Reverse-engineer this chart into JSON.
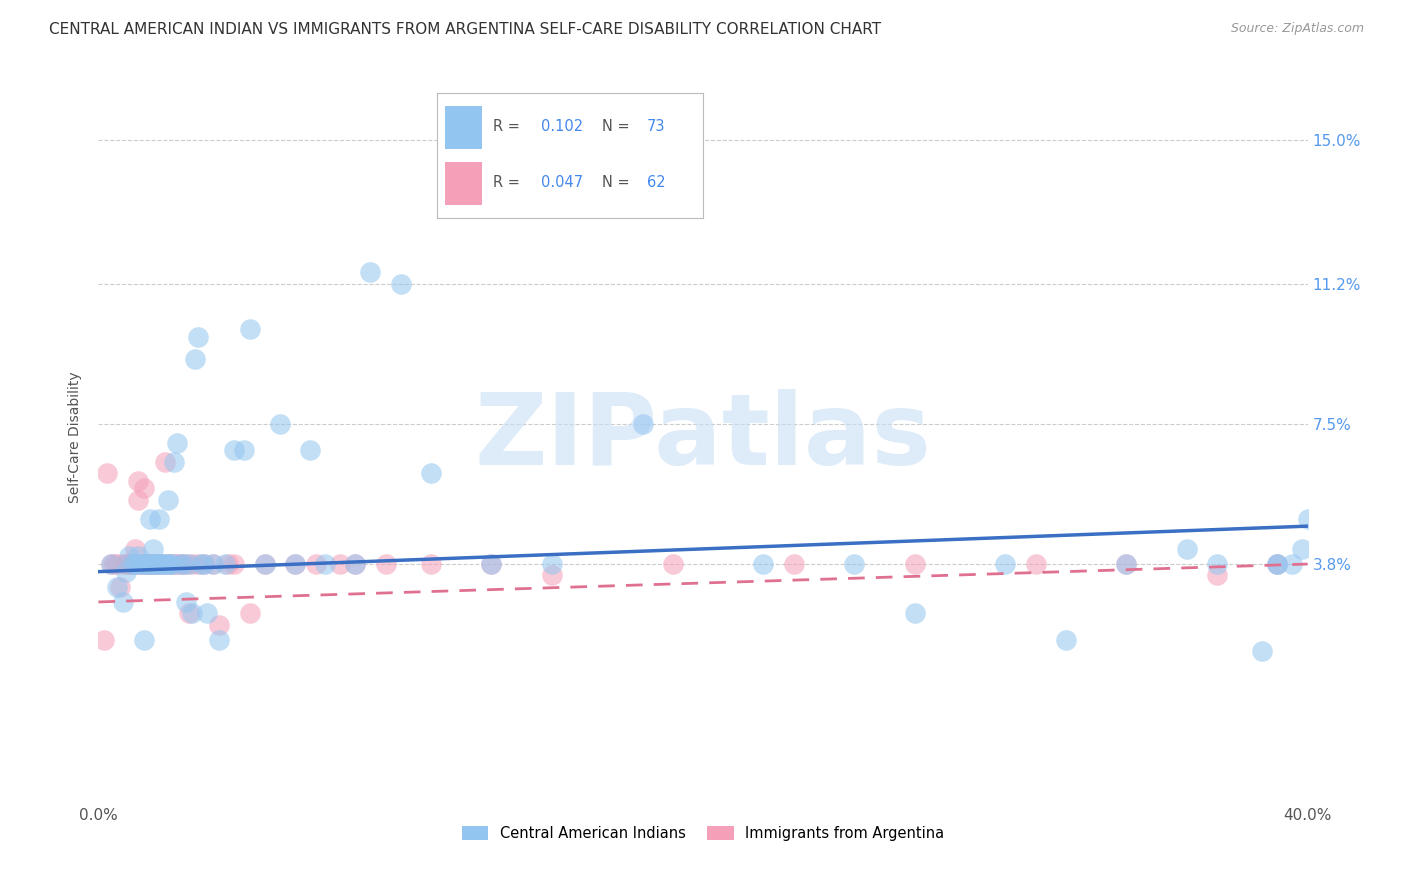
{
  "title": "CENTRAL AMERICAN INDIAN VS IMMIGRANTS FROM ARGENTINA SELF-CARE DISABILITY CORRELATION CHART",
  "source": "Source: ZipAtlas.com",
  "ylabel": "Self-Care Disability",
  "ytick_labels": [
    "15.0%",
    "11.2%",
    "7.5%",
    "3.8%"
  ],
  "ytick_values": [
    0.15,
    0.112,
    0.075,
    0.038
  ],
  "xlim": [
    0.0,
    0.4
  ],
  "ylim": [
    -0.025,
    0.168
  ],
  "legend1_r": "0.102",
  "legend1_n": "73",
  "legend2_r": "0.047",
  "legend2_n": "62",
  "color_blue": "#92c5f0",
  "color_pink": "#f4a0b8",
  "color_blue_line": "#3a6fc4",
  "color_pink_line": "#e07090",
  "blue_scatter_x": [
    0.004,
    0.006,
    0.008,
    0.009,
    0.01,
    0.011,
    0.012,
    0.013,
    0.013,
    0.014,
    0.015,
    0.015,
    0.016,
    0.016,
    0.017,
    0.017,
    0.018,
    0.018,
    0.019,
    0.019,
    0.02,
    0.02,
    0.021,
    0.022,
    0.022,
    0.023,
    0.023,
    0.024,
    0.024,
    0.025,
    0.026,
    0.027,
    0.028,
    0.029,
    0.03,
    0.031,
    0.032,
    0.033,
    0.034,
    0.035,
    0.036,
    0.038,
    0.04,
    0.042,
    0.045,
    0.048,
    0.05,
    0.055,
    0.06,
    0.065,
    0.07,
    0.075,
    0.085,
    0.09,
    0.1,
    0.11,
    0.13,
    0.15,
    0.18,
    0.22,
    0.25,
    0.27,
    0.3,
    0.32,
    0.34,
    0.36,
    0.37,
    0.385,
    0.39,
    0.39,
    0.395,
    0.398,
    0.4
  ],
  "blue_scatter_y": [
    0.038,
    0.032,
    0.028,
    0.036,
    0.04,
    0.038,
    0.038,
    0.04,
    0.038,
    0.038,
    0.038,
    0.018,
    0.038,
    0.038,
    0.038,
    0.05,
    0.038,
    0.042,
    0.038,
    0.038,
    0.038,
    0.05,
    0.038,
    0.038,
    0.038,
    0.038,
    0.055,
    0.038,
    0.038,
    0.065,
    0.07,
    0.038,
    0.038,
    0.028,
    0.038,
    0.025,
    0.092,
    0.098,
    0.038,
    0.038,
    0.025,
    0.038,
    0.018,
    0.038,
    0.068,
    0.068,
    0.1,
    0.038,
    0.075,
    0.038,
    0.068,
    0.038,
    0.038,
    0.115,
    0.112,
    0.062,
    0.038,
    0.038,
    0.075,
    0.038,
    0.038,
    0.025,
    0.038,
    0.018,
    0.038,
    0.042,
    0.038,
    0.015,
    0.038,
    0.038,
    0.038,
    0.042,
    0.05
  ],
  "pink_scatter_x": [
    0.002,
    0.003,
    0.004,
    0.005,
    0.006,
    0.007,
    0.008,
    0.009,
    0.01,
    0.01,
    0.011,
    0.012,
    0.012,
    0.013,
    0.013,
    0.014,
    0.014,
    0.015,
    0.015,
    0.016,
    0.016,
    0.017,
    0.017,
    0.018,
    0.018,
    0.019,
    0.019,
    0.02,
    0.021,
    0.022,
    0.023,
    0.024,
    0.025,
    0.026,
    0.027,
    0.028,
    0.029,
    0.03,
    0.031,
    0.033,
    0.035,
    0.038,
    0.04,
    0.043,
    0.045,
    0.05,
    0.055,
    0.065,
    0.072,
    0.08,
    0.085,
    0.095,
    0.11,
    0.13,
    0.15,
    0.19,
    0.23,
    0.27,
    0.31,
    0.34,
    0.37,
    0.39
  ],
  "pink_scatter_y": [
    0.018,
    0.062,
    0.038,
    0.038,
    0.038,
    0.032,
    0.038,
    0.038,
    0.038,
    0.038,
    0.038,
    0.038,
    0.042,
    0.06,
    0.055,
    0.038,
    0.038,
    0.038,
    0.058,
    0.038,
    0.038,
    0.038,
    0.038,
    0.038,
    0.038,
    0.038,
    0.038,
    0.038,
    0.038,
    0.065,
    0.038,
    0.038,
    0.038,
    0.038,
    0.038,
    0.038,
    0.038,
    0.025,
    0.038,
    0.038,
    0.038,
    0.038,
    0.022,
    0.038,
    0.038,
    0.025,
    0.038,
    0.038,
    0.038,
    0.038,
    0.038,
    0.038,
    0.038,
    0.038,
    0.035,
    0.038,
    0.038,
    0.038,
    0.038,
    0.038,
    0.035,
    0.038
  ],
  "blue_line_x": [
    0.0,
    0.4
  ],
  "blue_line_y": [
    0.036,
    0.048
  ],
  "pink_line_x": [
    0.0,
    0.4
  ],
  "pink_line_y": [
    0.028,
    0.038
  ],
  "background_color": "#ffffff",
  "grid_color": "#cccccc",
  "title_fontsize": 11,
  "axis_label_fontsize": 10,
  "tick_fontsize": 11,
  "source_text": "Source: ZipAtlas.com"
}
